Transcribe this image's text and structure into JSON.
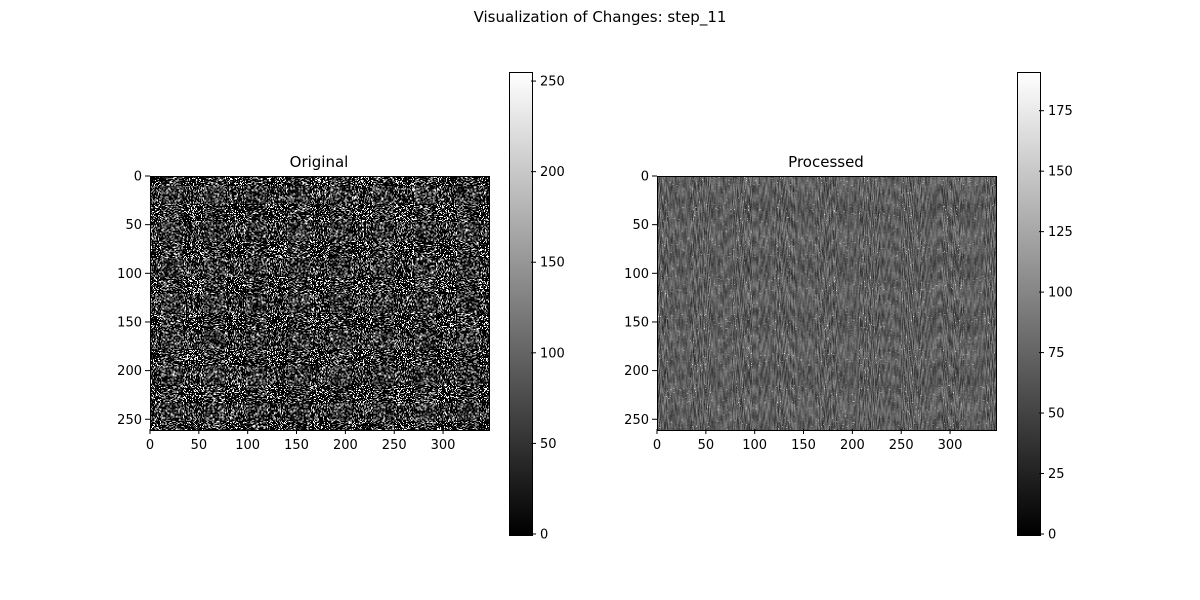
{
  "figure": {
    "suptitle": "Visualization of Changes: step_11"
  },
  "chart_data": [
    {
      "type": "heatmap",
      "title": "Original",
      "colormap": "gray",
      "image_width": 346,
      "image_height": 260,
      "xlim": [
        0,
        346
      ],
      "ylim": [
        260,
        0
      ],
      "x_ticks": [
        0,
        50,
        100,
        150,
        200,
        250,
        300
      ],
      "y_ticks": [
        0,
        50,
        100,
        150,
        200,
        250
      ],
      "colorbar": {
        "min": 0,
        "max": 255,
        "ticks": [
          0,
          50,
          100,
          150,
          200,
          250
        ]
      },
      "texture": "sparse-speckle"
    },
    {
      "type": "heatmap",
      "title": "Processed",
      "colormap": "gray",
      "image_width": 346,
      "image_height": 260,
      "xlim": [
        0,
        346
      ],
      "ylim": [
        260,
        0
      ],
      "x_ticks": [
        0,
        50,
        100,
        150,
        200,
        250,
        300
      ],
      "y_ticks": [
        0,
        50,
        100,
        150,
        200,
        250
      ],
      "colorbar": {
        "min": 0,
        "max": 191,
        "ticks": [
          0,
          25,
          50,
          75,
          100,
          125,
          150,
          175
        ]
      },
      "texture": "vertical-streaks"
    }
  ]
}
